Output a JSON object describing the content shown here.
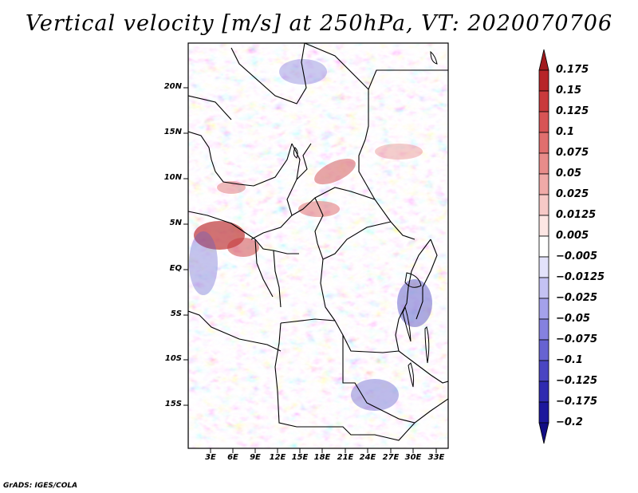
{
  "title": "Vertical velocity [m/s] at 250hPa, VT: 2020070706",
  "footer": "GrADS: IGES/COLA",
  "lat_labels": [
    "20N",
    "15N",
    "10N",
    "5N",
    "EQ",
    "5S",
    "10S",
    "15S"
  ],
  "lon_labels": [
    "3E",
    "6E",
    "9E",
    "12E",
    "15E",
    "18E",
    "21E",
    "24E",
    "27E",
    "30E",
    "33E"
  ],
  "colorbar": {
    "labels": [
      "0.175",
      "0.15",
      "0.125",
      "0.1",
      "0.075",
      "0.05",
      "0.025",
      "0.0125",
      "0.005",
      "−0.005",
      "−0.0125",
      "−0.025",
      "−0.05",
      "−0.075",
      "−0.1",
      "−0.125",
      "−0.175",
      "−0.2"
    ],
    "colors": [
      "#a11a1d",
      "#b72528",
      "#c93a3c",
      "#d75455",
      "#e06f6e",
      "#e88c8a",
      "#f0aaa8",
      "#f7c9c7",
      "#fde6e4",
      "#ffffff",
      "#e3e2fb",
      "#c4c2f3",
      "#a4a1ea",
      "#8581df",
      "#6763d2",
      "#4a45c2",
      "#302bb0",
      "#1d189c",
      "#120d84"
    ]
  }
}
